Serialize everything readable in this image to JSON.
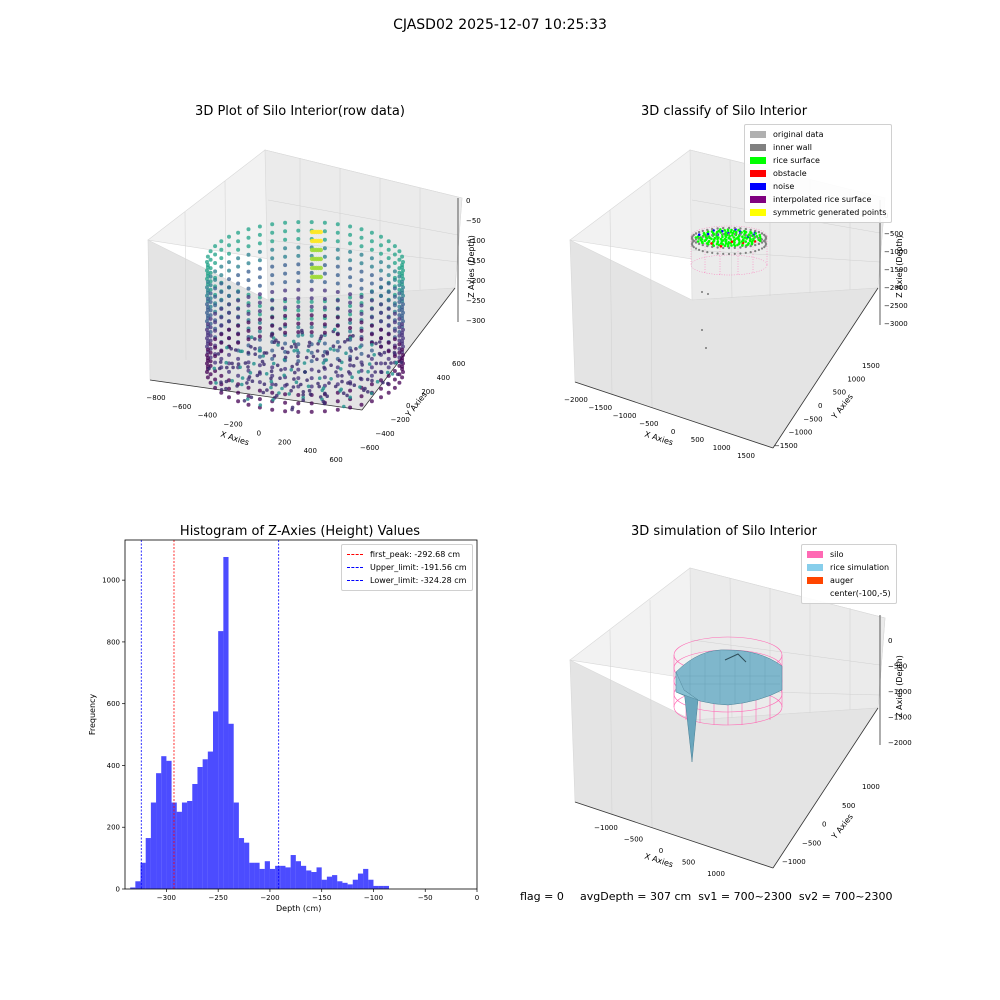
{
  "suptitle": "CJASD02 2025-12-07 10:25:33",
  "panels": {
    "raw": {
      "title": "3D Plot of Silo Interior(row data)",
      "xlabel": "X Axies",
      "ylabel": "Y Axies",
      "zlabel": "Z Axies (Depth)",
      "xticks": [
        "−800",
        "−600",
        "−400",
        "−200",
        "0",
        "200",
        "400",
        "600"
      ],
      "yticks": [
        "600",
        "400",
        "200",
        "0",
        "−200",
        "−400",
        "−600"
      ],
      "zticks": [
        "0",
        "−50",
        "−100",
        "−150",
        "−200",
        "−250",
        "−300"
      ],
      "colormap": "viridis"
    },
    "classify": {
      "title": "3D classify of Silo Interior",
      "xlabel": "X Axies",
      "ylabel": "Y Axies",
      "zlabel": "Z Axies (Depth)",
      "xticks": [
        "−2000",
        "−1500",
        "−1000",
        "−500",
        "0",
        "500",
        "1000",
        "1500"
      ],
      "yticks": [
        "1500",
        "1000",
        "500",
        "0",
        "−500",
        "−1000",
        "−1500"
      ],
      "zticks": [
        "0",
        "−500",
        "−1000",
        "−1500",
        "−2000",
        "−2500",
        "−3000"
      ],
      "legend": [
        {
          "label": "original data",
          "color": "#b0b0b0"
        },
        {
          "label": "inner wall",
          "color": "#808080"
        },
        {
          "label": "rice surface",
          "color": "#00ff00"
        },
        {
          "label": "obstacle",
          "color": "#ff0000"
        },
        {
          "label": "noise",
          "color": "#0000ff"
        },
        {
          "label": "interpolated rice surface",
          "color": "#800080"
        },
        {
          "label": "symmetric generated points",
          "color": "#ffff00"
        }
      ]
    },
    "simulation": {
      "title": "3D simulation of Silo Interior",
      "xlabel": "X Axies",
      "ylabel": "Y Axies",
      "zlabel": "Z Axies (Depth)",
      "xticks": [
        "−1000",
        "−500",
        "0",
        "500",
        "1000"
      ],
      "yticks": [
        "1000",
        "500",
        "0",
        "−500",
        "−1000"
      ],
      "zticks": [
        "0",
        "−500",
        "−1000",
        "−1500",
        "−2000"
      ],
      "legend": [
        {
          "label": "silo",
          "color": "#ff69b4"
        },
        {
          "label": "rice simulation",
          "color": "#87ceeb"
        },
        {
          "label": "auger",
          "color": "#ff4500"
        },
        {
          "label": "center(-100,-5)",
          "color": ""
        }
      ]
    }
  },
  "footer": {
    "flag": "flag = 0",
    "stats": "avgDepth = 307 cm  sv1 = 700~2300  sv2 = 700~2300"
  },
  "chart_data": [
    {
      "type": "bar",
      "title": "Histogram of Z-Axies (Height) Values",
      "xlabel": "Depth (cm)",
      "ylabel": "Frequency",
      "xlim": [
        -340,
        0
      ],
      "ylim": [
        0,
        1130
      ],
      "bar_color": "#0000ff",
      "bin_width": 5,
      "bin_starts": [
        -335,
        -330,
        -325,
        -320,
        -315,
        -310,
        -305,
        -300,
        -295,
        -290,
        -285,
        -280,
        -275,
        -270,
        -265,
        -260,
        -255,
        -250,
        -245,
        -240,
        -235,
        -230,
        -225,
        -220,
        -215,
        -210,
        -205,
        -200,
        -195,
        -190,
        -185,
        -180,
        -175,
        -170,
        -165,
        -160,
        -155,
        -150,
        -145,
        -140,
        -135,
        -130,
        -125,
        -120,
        -115,
        -110,
        -105,
        -100,
        -95,
        -90,
        -85,
        -80,
        -75,
        -70,
        -65,
        -60,
        -55,
        -50,
        -45,
        -40,
        -35,
        -30,
        -25,
        -20,
        -15
      ],
      "values": [
        5,
        25,
        85,
        165,
        280,
        375,
        430,
        415,
        280,
        250,
        280,
        285,
        340,
        395,
        420,
        445,
        575,
        835,
        1075,
        535,
        280,
        165,
        150,
        85,
        85,
        65,
        90,
        65,
        75,
        75,
        70,
        110,
        90,
        75,
        60,
        55,
        70,
        30,
        40,
        45,
        25,
        20,
        15,
        30,
        50,
        65,
        30,
        10,
        10,
        10,
        0,
        0,
        0,
        0,
        0,
        0,
        0,
        0,
        0,
        0,
        0,
        0,
        0,
        0,
        0
      ],
      "xticks": [
        "−300",
        "−250",
        "−200",
        "−150",
        "−100",
        "−50",
        "0"
      ],
      "yticks": [
        "0",
        "200",
        "400",
        "600",
        "800",
        "1000"
      ],
      "lines": [
        {
          "name": "first_peak: -292.68 cm",
          "x": -292.68,
          "color": "#ff0000"
        },
        {
          "name": "Upper_limit: -191.56 cm",
          "x": -191.56,
          "color": "#0000ff"
        },
        {
          "name": "Lower_limit: -324.28 cm",
          "x": -324.28,
          "color": "#0000ff"
        }
      ]
    }
  ]
}
